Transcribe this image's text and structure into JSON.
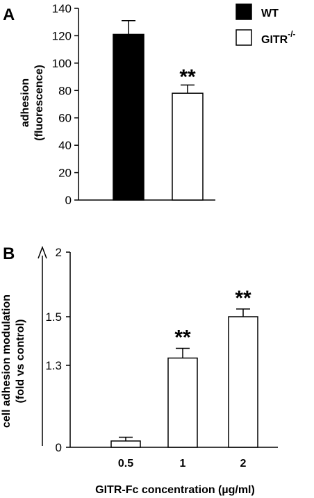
{
  "chart_data": [
    {
      "panel": "A",
      "type": "bar",
      "ylabel_line1": "adhesion",
      "ylabel_line2": "(fluorescence)",
      "ylim": [
        0,
        140
      ],
      "yticks": [
        "0",
        "20",
        "40",
        "60",
        "80",
        "100",
        "120",
        "140"
      ],
      "categories": [
        "WT",
        "GITR -/-"
      ],
      "values": [
        121,
        78
      ],
      "errors": [
        10,
        6
      ],
      "fills": [
        "#000000",
        "#ffffff"
      ],
      "annotations": [
        "",
        "**"
      ],
      "legend": [
        {
          "label": "WT",
          "superscript": "",
          "fill": "#000000"
        },
        {
          "label": "GITR",
          "superscript": "-/-",
          "fill": "#ffffff"
        }
      ]
    },
    {
      "panel": "B",
      "type": "bar",
      "ylabel_line1": "cell adhesion modulation",
      "ylabel_line2": "(fold vs control)",
      "xlabel": "GITR-Fc concentration (µg/ml)",
      "yticks": [
        "0",
        "1.3",
        "1.5",
        "2"
      ],
      "categories": [
        "0.5",
        "1",
        "2"
      ],
      "values": [
        0.1,
        1.33,
        1.5
      ],
      "errors": [
        0.06,
        0.04,
        0.06
      ],
      "annotations": [
        "",
        "**",
        "**"
      ],
      "grid": false
    }
  ]
}
